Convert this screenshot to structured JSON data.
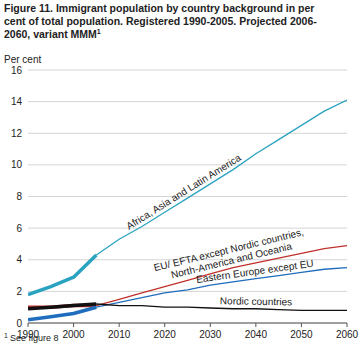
{
  "chart_data": {
    "type": "line",
    "title": [
      "Figure 11. Immigrant population by country background in per",
      "cent of total population. Registered 1990-2005. Projected 2006-",
      "2060, variant MMM"
    ],
    "footnote_marker": "1",
    "footnote": "See figure 8",
    "y_label": "Per cent",
    "x": [
      1990,
      1995,
      2000,
      2005,
      2010,
      2015,
      2020,
      2025,
      2030,
      2035,
      2040,
      2045,
      2050,
      2055,
      2060
    ],
    "series": [
      {
        "name": "Africa, Asia and Latin America",
        "color": "#2aa3c0",
        "registered": [
          1.8,
          2.3,
          2.9,
          4.3,
          null,
          null,
          null,
          null,
          null,
          null,
          null,
          null,
          null,
          null,
          null
        ],
        "values": [
          null,
          null,
          null,
          4.3,
          5.3,
          6.1,
          7.0,
          7.9,
          8.8,
          9.7,
          10.7,
          11.6,
          12.5,
          13.4,
          14.1
        ]
      },
      {
        "name": "EU/ EFTA except Nordic countries, North-America and Oceania",
        "color": "#c0302b",
        "registered": [
          1.0,
          1.0,
          1.1,
          1.1,
          null,
          null,
          null,
          null,
          null,
          null,
          null,
          null,
          null,
          null,
          null
        ],
        "values": [
          null,
          null,
          null,
          1.1,
          1.5,
          1.9,
          2.3,
          2.7,
          3.1,
          3.5,
          3.8,
          4.1,
          4.4,
          4.7,
          4.9
        ]
      },
      {
        "name": "Eastern Europe except EU",
        "color": "#1f6dbd",
        "registered": [
          0.2,
          0.4,
          0.6,
          1.0,
          null,
          null,
          null,
          null,
          null,
          null,
          null,
          null,
          null,
          null,
          null
        ],
        "values": [
          null,
          null,
          null,
          1.0,
          1.3,
          1.6,
          1.9,
          2.1,
          2.4,
          2.6,
          2.8,
          3.0,
          3.2,
          3.4,
          3.5
        ]
      },
      {
        "name": "Nordic countries",
        "color": "#111111",
        "registered": [
          0.9,
          1.0,
          1.1,
          1.2,
          null,
          null,
          null,
          null,
          null,
          null,
          null,
          null,
          null,
          null,
          null
        ],
        "values": [
          null,
          null,
          null,
          1.2,
          1.1,
          1.1,
          1.0,
          1.0,
          0.95,
          0.9,
          0.9,
          0.85,
          0.8,
          0.8,
          0.8
        ]
      }
    ],
    "xlim": [
      1990,
      2060
    ],
    "xticks": [
      1990,
      2000,
      2010,
      2020,
      2030,
      2040,
      2050,
      2060
    ],
    "ylim": [
      0,
      16
    ],
    "yticks": [
      0,
      2,
      4,
      6,
      8,
      10,
      12,
      14,
      16
    ],
    "grid": true
  }
}
